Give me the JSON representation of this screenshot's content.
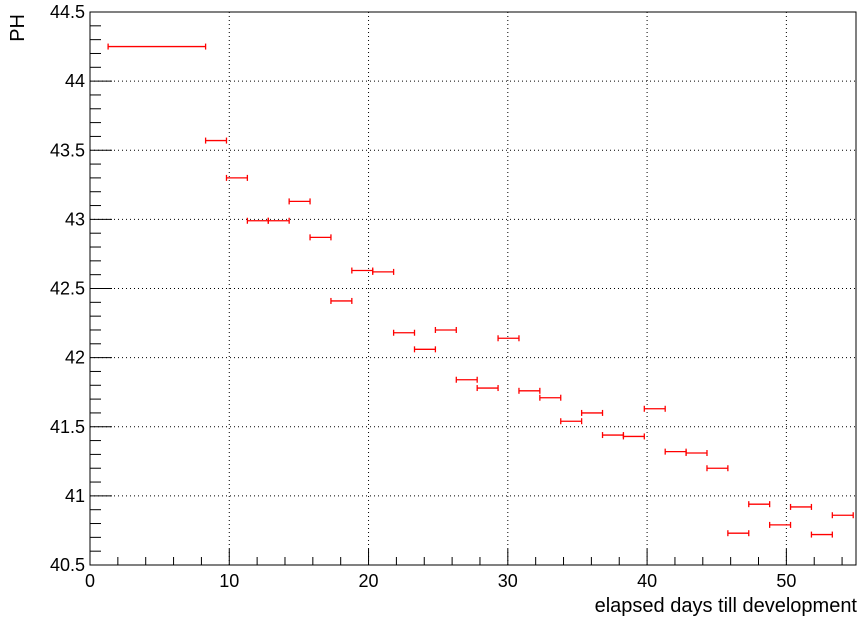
{
  "chart_data": {
    "type": "scatter",
    "title": "",
    "xlabel": "elapsed days till development",
    "ylabel": "PH",
    "xlim": [
      0,
      55
    ],
    "ylim": [
      40.5,
      44.5
    ],
    "grid": true,
    "x_ticks": [
      "0",
      "10",
      "20",
      "30",
      "40",
      "50"
    ],
    "y_ticks": [
      "40.5",
      "41",
      "41.5",
      "42",
      "42.5",
      "43",
      "43.5",
      "44",
      "44.5"
    ],
    "series": [
      {
        "color": "#ff0000",
        "points": [
          {
            "x_low": 1.3,
            "x_high": 8.3,
            "y": 44.25
          },
          {
            "x_low": 8.3,
            "x_high": 9.8,
            "y": 43.57
          },
          {
            "x_low": 9.8,
            "x_high": 11.3,
            "y": 43.3
          },
          {
            "x_low": 11.3,
            "x_high": 12.8,
            "y": 42.99
          },
          {
            "x_low": 12.8,
            "x_high": 14.3,
            "y": 42.99
          },
          {
            "x_low": 14.3,
            "x_high": 15.8,
            "y": 43.13
          },
          {
            "x_low": 15.8,
            "x_high": 17.3,
            "y": 42.87
          },
          {
            "x_low": 17.3,
            "x_high": 18.8,
            "y": 42.41
          },
          {
            "x_low": 18.8,
            "x_high": 20.3,
            "y": 42.63
          },
          {
            "x_low": 20.3,
            "x_high": 21.8,
            "y": 42.62
          },
          {
            "x_low": 21.8,
            "x_high": 23.3,
            "y": 42.18
          },
          {
            "x_low": 23.3,
            "x_high": 24.8,
            "y": 42.06
          },
          {
            "x_low": 24.8,
            "x_high": 26.3,
            "y": 42.2
          },
          {
            "x_low": 26.3,
            "x_high": 27.8,
            "y": 41.84
          },
          {
            "x_low": 27.8,
            "x_high": 29.3,
            "y": 41.78
          },
          {
            "x_low": 29.3,
            "x_high": 30.8,
            "y": 42.14
          },
          {
            "x_low": 30.8,
            "x_high": 32.3,
            "y": 41.76
          },
          {
            "x_low": 32.3,
            "x_high": 33.8,
            "y": 41.71
          },
          {
            "x_low": 33.8,
            "x_high": 35.3,
            "y": 41.54
          },
          {
            "x_low": 35.3,
            "x_high": 36.8,
            "y": 41.6
          },
          {
            "x_low": 36.8,
            "x_high": 38.3,
            "y": 41.44
          },
          {
            "x_low": 38.3,
            "x_high": 39.8,
            "y": 41.43
          },
          {
            "x_low": 39.8,
            "x_high": 41.3,
            "y": 41.63
          },
          {
            "x_low": 41.3,
            "x_high": 42.8,
            "y": 41.32
          },
          {
            "x_low": 42.8,
            "x_high": 44.3,
            "y": 41.31
          },
          {
            "x_low": 44.3,
            "x_high": 45.8,
            "y": 41.2
          },
          {
            "x_low": 45.8,
            "x_high": 47.3,
            "y": 40.73
          },
          {
            "x_low": 47.3,
            "x_high": 48.8,
            "y": 40.94
          },
          {
            "x_low": 48.8,
            "x_high": 50.3,
            "y": 40.79
          },
          {
            "x_low": 50.3,
            "x_high": 51.8,
            "y": 40.92
          },
          {
            "x_low": 51.8,
            "x_high": 53.3,
            "y": 40.72
          },
          {
            "x_low": 53.3,
            "x_high": 54.8,
            "y": 40.86
          }
        ]
      }
    ]
  }
}
